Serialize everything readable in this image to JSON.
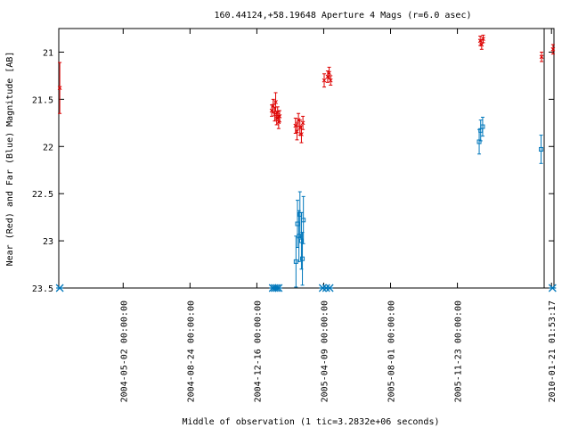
{
  "chart_data": {
    "type": "scatter",
    "title": "160.44124,+58.19648   Aperture 4 Mags (r=6.0 asec)",
    "xlabel": "Middle of observation (1 tic=3.2832e+06 seconds)",
    "ylabel": "Near (Red) and Far (Blue) Magnitude [AB]",
    "y_reversed": true,
    "ylim": [
      20.75,
      23.5
    ],
    "xlim": [
      0,
      100
    ],
    "grid": false,
    "y_ticks": [
      {
        "value": 21,
        "label": "21"
      },
      {
        "value": 21.5,
        "label": "21.5"
      },
      {
        "value": 22,
        "label": "22"
      },
      {
        "value": 22.5,
        "label": "22.5"
      },
      {
        "value": 23,
        "label": "23"
      },
      {
        "value": 23.5,
        "label": "23.5"
      }
    ],
    "x_ticks": [
      {
        "value": 13.0,
        "label": "2004-05-02 00:00:00"
      },
      {
        "value": 26.5,
        "label": "2004-08-24 00:00:00"
      },
      {
        "value": 40.0,
        "label": "2004-12-16 00:00:00"
      },
      {
        "value": 53.5,
        "label": "2005-04-09 00:00:00"
      },
      {
        "value": 67.0,
        "label": "2005-08-01 00:00:00"
      },
      {
        "value": 80.5,
        "label": "2005-11-23 00:00:00"
      },
      {
        "value": 99.5,
        "label": "2010-01-21 01:53:17"
      }
    ],
    "series": [
      {
        "name": "Near",
        "color": "#dd0000",
        "marker": "x",
        "points": [
          {
            "x": 0.2,
            "y": 21.38,
            "err": 0.27
          },
          {
            "x": 43.0,
            "y": 21.62,
            "err": 0.06
          },
          {
            "x": 43.3,
            "y": 21.57,
            "err": 0.07
          },
          {
            "x": 43.6,
            "y": 21.66,
            "err": 0.07
          },
          {
            "x": 43.8,
            "y": 21.53,
            "err": 0.1
          },
          {
            "x": 44.0,
            "y": 21.7,
            "err": 0.07
          },
          {
            "x": 44.2,
            "y": 21.64,
            "err": 0.06
          },
          {
            "x": 44.4,
            "y": 21.74,
            "err": 0.07
          },
          {
            "x": 44.6,
            "y": 21.68,
            "err": 0.06
          },
          {
            "x": 47.8,
            "y": 21.78,
            "err": 0.08
          },
          {
            "x": 48.1,
            "y": 21.84,
            "err": 0.09
          },
          {
            "x": 48.4,
            "y": 21.72,
            "err": 0.07
          },
          {
            "x": 48.7,
            "y": 21.8,
            "err": 0.08
          },
          {
            "x": 49.0,
            "y": 21.87,
            "err": 0.09
          },
          {
            "x": 49.3,
            "y": 21.75,
            "err": 0.07
          },
          {
            "x": 53.6,
            "y": 21.3,
            "err": 0.07
          },
          {
            "x": 54.3,
            "y": 21.26,
            "err": 0.06
          },
          {
            "x": 54.6,
            "y": 21.22,
            "err": 0.06
          },
          {
            "x": 54.9,
            "y": 21.3,
            "err": 0.05
          },
          {
            "x": 85.1,
            "y": 20.88,
            "err": 0.05
          },
          {
            "x": 85.4,
            "y": 20.92,
            "err": 0.05
          },
          {
            "x": 85.7,
            "y": 20.86,
            "err": 0.04
          },
          {
            "x": 97.5,
            "y": 21.05,
            "err": 0.05
          },
          {
            "x": 99.8,
            "y": 20.97,
            "err": 0.05
          }
        ]
      },
      {
        "name": "Far",
        "color": "#0077bb",
        "marker": "square",
        "points": [
          {
            "x": 47.9,
            "y": 23.22,
            "err": 0.27
          },
          {
            "x": 48.2,
            "y": 22.82,
            "err": 0.25
          },
          {
            "x": 48.5,
            "y": 22.95,
            "err": 0.27
          },
          {
            "x": 48.7,
            "y": 22.72,
            "err": 0.24
          },
          {
            "x": 49.0,
            "y": 23.0,
            "err": 0.3
          },
          {
            "x": 49.2,
            "y": 23.19,
            "err": 0.28
          },
          {
            "x": 49.4,
            "y": 22.78,
            "err": 0.25
          },
          {
            "x": 84.9,
            "y": 21.95,
            "err": 0.13
          },
          {
            "x": 85.2,
            "y": 21.83,
            "err": 0.11
          },
          {
            "x": 85.6,
            "y": 21.79,
            "err": 0.1
          },
          {
            "x": 97.4,
            "y": 22.03,
            "err": 0.15
          }
        ]
      }
    ],
    "epoch_markers": {
      "color": "#0077bb",
      "x": [
        0.2,
        43.2,
        43.6,
        44.0,
        44.4,
        53.3,
        54.0,
        54.7,
        99.7
      ],
      "y": 23.5
    },
    "colors": {
      "near": "#dd0000",
      "far": "#0077bb",
      "axis": "#000000",
      "background": "#ffffff"
    }
  }
}
